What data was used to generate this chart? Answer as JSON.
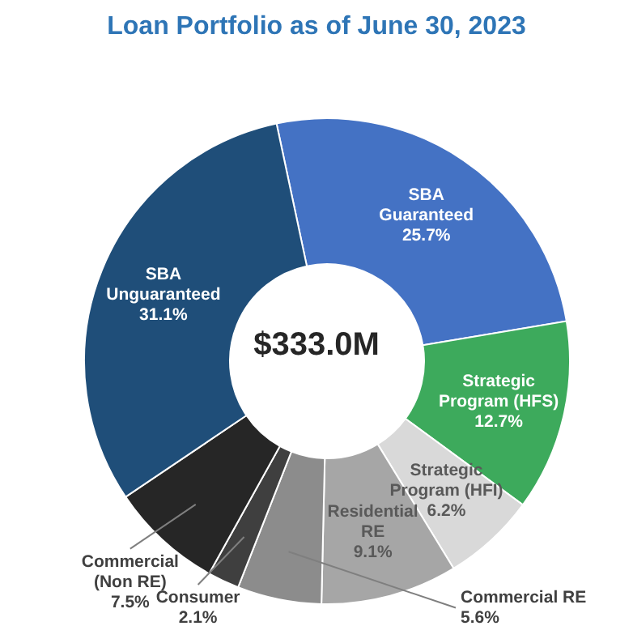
{
  "chart_data": {
    "type": "donut",
    "title": "Loan Portfolio as of June 30, 2023",
    "categories": [
      "SBA Guaranteed",
      "Strategic Program (HFS)",
      "Strategic Program (HFI)",
      "Residential RE",
      "Commercial RE",
      "Consumer",
      "Commercial (Non RE)",
      "SBA Unguaranteed"
    ],
    "values": [
      25.7,
      12.7,
      6.2,
      9.1,
      5.6,
      2.1,
      7.5,
      31.1
    ],
    "colors": [
      "#4472c4",
      "#3daa5c",
      "#d9d9d9",
      "#a6a6a6",
      "#8c8c8c",
      "#3f3f3f",
      "#262626",
      "#1f4e79"
    ],
    "value_labels": [
      "25.7%",
      "12.7%",
      "6.2%",
      "9.1%",
      "5.6%",
      "2.1%",
      "7.5%",
      "31.1%"
    ],
    "annotations": [
      "$333.0M"
    ]
  }
}
